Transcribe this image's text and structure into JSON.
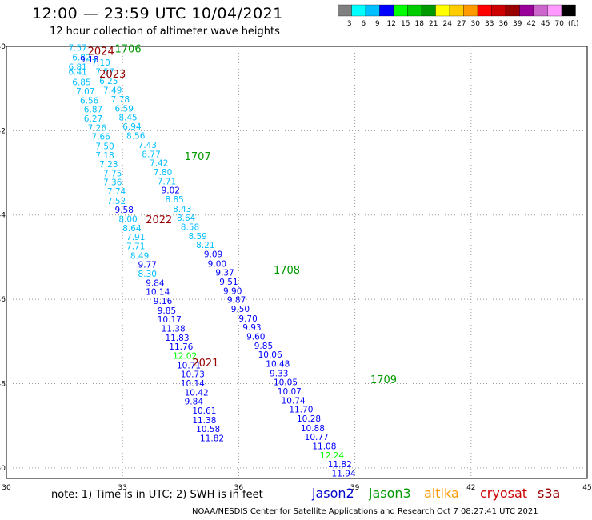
{
  "title": "12:00 — 23:59 UTC 10/04/2021",
  "subtitle": "12 hour collection of altimeter wave heights",
  "colorbar": {
    "colors": [
      "#808080",
      "#00ffff",
      "#00bfff",
      "#0000ff",
      "#00ff00",
      "#00cc00",
      "#009900",
      "#ffff00",
      "#ffcc00",
      "#ff9900",
      "#ff0000",
      "#cc0000",
      "#990000",
      "#990099",
      "#cc66cc",
      "#ff99ff",
      "#000000"
    ],
    "labels": [
      "3",
      "6",
      "9",
      "12",
      "15",
      "18",
      "21",
      "24",
      "27",
      "30",
      "33",
      "36",
      "39",
      "42",
      "45",
      "70",
      "(ft)"
    ]
  },
  "note": "note:  1) Time is in UTC;  2) SWH is in feet",
  "credit": "NOAA/NESDIS Center for Satellite Applications and Research     Oct  7 08:27:41 UTC 2021",
  "satellites": [
    {
      "name": "jason2",
      "color": "#0000cc"
    },
    {
      "name": "jason3",
      "color": "#009900"
    },
    {
      "name": "altika",
      "color": "#ff9900"
    },
    {
      "name": "cryosat",
      "color": "#cc0000"
    },
    {
      "name": "s3a",
      "color": "#990000"
    }
  ],
  "chart_data": {
    "type": "scatter",
    "xlim": [
      30,
      45
    ],
    "ylim": [
      -50.25,
      -40
    ],
    "x_ticks": [
      "30",
      "33",
      "36",
      "39",
      "42",
      "45"
    ],
    "y_ticks": [
      "-40",
      "-42",
      "-44",
      "-46",
      "-48",
      "-50"
    ],
    "value_colors": {
      "6-9": "#00bfff",
      "9-12": "#0000ff",
      "12-15": "#00ff00"
    },
    "pass_labels": [
      {
        "text": "1706",
        "lon": 32.8,
        "lat": -40.05,
        "color": "#009900"
      },
      {
        "text": "2024",
        "lon": 32.1,
        "lat": -40.1,
        "color": "#990000"
      },
      {
        "text": "2023",
        "lon": 32.4,
        "lat": -40.65,
        "color": "#990000"
      },
      {
        "text": "1707",
        "lon": 34.6,
        "lat": -42.6,
        "color": "#009900"
      },
      {
        "text": "2022",
        "lon": 33.6,
        "lat": -44.1,
        "color": "#990000"
      },
      {
        "text": "1708",
        "lon": 36.9,
        "lat": -45.3,
        "color": "#009900"
      },
      {
        "text": "2021",
        "lon": 34.8,
        "lat": -47.5,
        "color": "#990000"
      },
      {
        "text": "1709",
        "lon": 39.4,
        "lat": -47.9,
        "color": "#009900"
      }
    ],
    "tracks": [
      {
        "name": "2021-2024",
        "points": [
          {
            "lon": 31.6,
            "lat": -40.03,
            "swh": 7.57
          },
          {
            "lon": 31.7,
            "lat": -40.26,
            "swh": 6.82
          },
          {
            "lon": 31.6,
            "lat": -40.48,
            "swh": 6.81
          },
          {
            "lon": 31.6,
            "lat": -40.6,
            "swh": 6.41
          },
          {
            "lon": 31.7,
            "lat": -40.84,
            "swh": 6.85
          },
          {
            "lon": 31.8,
            "lat": -41.06,
            "swh": 7.07
          },
          {
            "lon": 31.9,
            "lat": -41.28,
            "swh": 6.56
          },
          {
            "lon": 32.0,
            "lat": -41.49,
            "swh": 6.87
          },
          {
            "lon": 32.0,
            "lat": -41.71,
            "swh": 6.27
          },
          {
            "lon": 32.1,
            "lat": -41.93,
            "swh": 7.26
          },
          {
            "lon": 32.2,
            "lat": -42.14,
            "swh": 7.66
          },
          {
            "lon": 32.3,
            "lat": -42.36,
            "swh": 7.5
          },
          {
            "lon": 32.3,
            "lat": -42.58,
            "swh": 7.18
          },
          {
            "lon": 32.4,
            "lat": -42.79,
            "swh": 7.23
          },
          {
            "lon": 32.5,
            "lat": -43.01,
            "swh": 7.75
          },
          {
            "lon": 32.5,
            "lat": -43.22,
            "swh": 7.36
          },
          {
            "lon": 32.6,
            "lat": -43.44,
            "swh": 7.74
          },
          {
            "lon": 32.6,
            "lat": -43.66,
            "swh": 7.52
          },
          {
            "lon": 32.8,
            "lat": -43.87,
            "swh": 9.58
          },
          {
            "lon": 32.9,
            "lat": -44.09,
            "swh": 8.0
          },
          {
            "lon": 33.0,
            "lat": -44.31,
            "swh": 8.64
          },
          {
            "lon": 33.1,
            "lat": -44.52,
            "swh": 7.91
          },
          {
            "lon": 33.1,
            "lat": -44.74,
            "swh": 7.71
          },
          {
            "lon": 33.2,
            "lat": -44.96,
            "swh": 8.49
          },
          {
            "lon": 33.4,
            "lat": -45.17,
            "swh": 9.77
          },
          {
            "lon": 33.4,
            "lat": -45.39,
            "swh": 8.3
          },
          {
            "lon": 33.6,
            "lat": -45.61,
            "swh": 9.84
          },
          {
            "lon": 33.6,
            "lat": -45.82,
            "swh": 10.14
          },
          {
            "lon": 33.8,
            "lat": -46.04,
            "swh": 9.16
          },
          {
            "lon": 33.9,
            "lat": -46.26,
            "swh": 9.85
          },
          {
            "lon": 33.9,
            "lat": -46.47,
            "swh": 10.17
          },
          {
            "lon": 34.0,
            "lat": -46.69,
            "swh": 11.38
          },
          {
            "lon": 34.1,
            "lat": -46.91,
            "swh": 11.83
          },
          {
            "lon": 34.2,
            "lat": -47.12,
            "swh": 11.76
          },
          {
            "lon": 34.3,
            "lat": -47.34,
            "swh": 12.02
          },
          {
            "lon": 34.4,
            "lat": -47.56,
            "swh": 10.71
          },
          {
            "lon": 34.5,
            "lat": -47.77,
            "swh": 10.73
          },
          {
            "lon": 34.5,
            "lat": -47.99,
            "swh": 10.14
          },
          {
            "lon": 34.6,
            "lat": -48.21,
            "swh": 10.42
          },
          {
            "lon": 34.6,
            "lat": -48.42,
            "swh": 9.84
          },
          {
            "lon": 34.8,
            "lat": -48.64,
            "swh": 10.61
          },
          {
            "lon": 34.8,
            "lat": -48.86,
            "swh": 11.38
          },
          {
            "lon": 34.9,
            "lat": -49.07,
            "swh": 10.58
          },
          {
            "lon": 35.0,
            "lat": -49.29,
            "swh": 11.82
          }
        ]
      },
      {
        "name": "1706-1709",
        "points": [
          {
            "lon": 31.9,
            "lat": -40.3,
            "swh": 9.18
          },
          {
            "lon": 32.2,
            "lat": -40.38,
            "swh": 7.1
          },
          {
            "lon": 32.3,
            "lat": -40.6,
            "swh": 7.57
          },
          {
            "lon": 32.4,
            "lat": -40.82,
            "swh": 6.25
          },
          {
            "lon": 32.5,
            "lat": -41.03,
            "swh": 7.49
          },
          {
            "lon": 32.7,
            "lat": -41.25,
            "swh": 7.78
          },
          {
            "lon": 32.8,
            "lat": -41.47,
            "swh": 6.59
          },
          {
            "lon": 32.9,
            "lat": -41.68,
            "swh": 8.45
          },
          {
            "lon": 33.0,
            "lat": -41.9,
            "swh": 6.94
          },
          {
            "lon": 33.1,
            "lat": -42.12,
            "swh": 8.56
          },
          {
            "lon": 33.4,
            "lat": -42.33,
            "swh": 7.43
          },
          {
            "lon": 33.5,
            "lat": -42.55,
            "swh": 8.77
          },
          {
            "lon": 33.7,
            "lat": -42.76,
            "swh": 7.42
          },
          {
            "lon": 33.8,
            "lat": -42.98,
            "swh": 7.8
          },
          {
            "lon": 33.9,
            "lat": -43.2,
            "swh": 7.71
          },
          {
            "lon": 34.0,
            "lat": -43.41,
            "swh": 9.02
          },
          {
            "lon": 34.1,
            "lat": -43.63,
            "swh": 8.85
          },
          {
            "lon": 34.3,
            "lat": -43.85,
            "swh": 8.43
          },
          {
            "lon": 34.4,
            "lat": -44.06,
            "swh": 8.64
          },
          {
            "lon": 34.5,
            "lat": -44.28,
            "swh": 8.58
          },
          {
            "lon": 34.7,
            "lat": -44.5,
            "swh": 8.59
          },
          {
            "lon": 34.9,
            "lat": -44.71,
            "swh": 8.21
          },
          {
            "lon": 35.1,
            "lat": -44.93,
            "swh": 9.09
          },
          {
            "lon": 35.2,
            "lat": -45.15,
            "swh": 9.0
          },
          {
            "lon": 35.4,
            "lat": -45.36,
            "swh": 9.37
          },
          {
            "lon": 35.5,
            "lat": -45.58,
            "swh": 9.51
          },
          {
            "lon": 35.6,
            "lat": -45.8,
            "swh": 9.9
          },
          {
            "lon": 35.7,
            "lat": -46.01,
            "swh": 9.87
          },
          {
            "lon": 35.8,
            "lat": -46.23,
            "swh": 9.5
          },
          {
            "lon": 36.0,
            "lat": -46.45,
            "swh": 9.7
          },
          {
            "lon": 36.1,
            "lat": -46.66,
            "swh": 9.93
          },
          {
            "lon": 36.2,
            "lat": -46.88,
            "swh": 9.6
          },
          {
            "lon": 36.4,
            "lat": -47.1,
            "swh": 9.85
          },
          {
            "lon": 36.5,
            "lat": -47.31,
            "swh": 10.06
          },
          {
            "lon": 36.7,
            "lat": -47.53,
            "swh": 10.48
          },
          {
            "lon": 36.8,
            "lat": -47.75,
            "swh": 9.33
          },
          {
            "lon": 36.9,
            "lat": -47.96,
            "swh": 10.05
          },
          {
            "lon": 37.0,
            "lat": -48.18,
            "swh": 10.07
          },
          {
            "lon": 37.1,
            "lat": -48.4,
            "swh": 10.74
          },
          {
            "lon": 37.3,
            "lat": -48.61,
            "swh": 11.7
          },
          {
            "lon": 37.5,
            "lat": -48.83,
            "swh": 10.28
          },
          {
            "lon": 37.6,
            "lat": -49.05,
            "swh": 10.88
          },
          {
            "lon": 37.7,
            "lat": -49.26,
            "swh": 10.77
          },
          {
            "lon": 37.9,
            "lat": -49.48,
            "swh": 11.08
          },
          {
            "lon": 38.1,
            "lat": -49.7,
            "swh": 12.24
          },
          {
            "lon": 38.3,
            "lat": -49.91,
            "swh": 11.82
          },
          {
            "lon": 38.4,
            "lat": -50.13,
            "swh": 11.94
          }
        ]
      }
    ]
  }
}
